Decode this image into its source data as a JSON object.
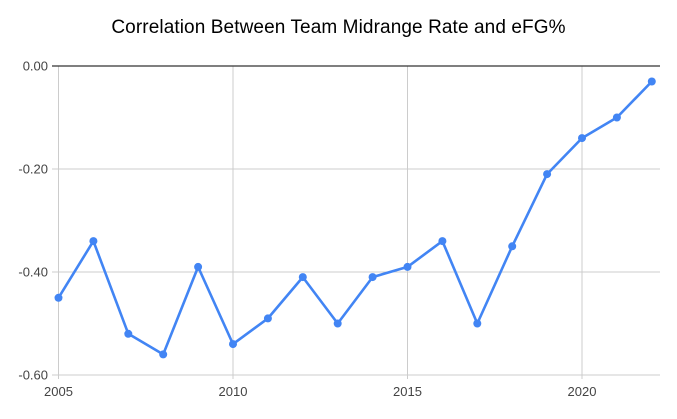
{
  "chart_data": {
    "type": "line",
    "title": "Correlation Between Team Midrange Rate and eFG%",
    "xlabel": "",
    "ylabel": "",
    "x": [
      2005,
      2006,
      2007,
      2008,
      2009,
      2010,
      2011,
      2012,
      2013,
      2014,
      2015,
      2016,
      2017,
      2018,
      2019,
      2020,
      2021,
      2022
    ],
    "values": [
      -0.45,
      -0.34,
      -0.52,
      -0.56,
      -0.39,
      -0.54,
      -0.49,
      -0.41,
      -0.5,
      -0.41,
      -0.39,
      -0.34,
      -0.5,
      -0.35,
      -0.21,
      -0.14,
      -0.1,
      -0.03
    ],
    "ylim": [
      -0.6,
      0.0
    ],
    "xlim": [
      2005,
      2022.3
    ],
    "yticks": [
      {
        "v": 0.0,
        "label": "0.00"
      },
      {
        "v": -0.2,
        "label": "-0.20"
      },
      {
        "v": -0.4,
        "label": "-0.40"
      },
      {
        "v": -0.6,
        "label": "-0.60"
      }
    ],
    "xticks": [
      {
        "v": 2005,
        "label": "2005"
      },
      {
        "v": 2010,
        "label": "2010"
      },
      {
        "v": 2015,
        "label": "2015"
      },
      {
        "v": 2020,
        "label": "2020"
      }
    ],
    "grid": true,
    "legend_position": "none",
    "marker": "circle"
  },
  "colors": {
    "background": "#ffffff",
    "line": "#4285f4",
    "point": "#4285f4",
    "gridline": "#cccccc",
    "zero_baseline": "#333333",
    "axis_label": "#444444",
    "title": "#000000"
  }
}
